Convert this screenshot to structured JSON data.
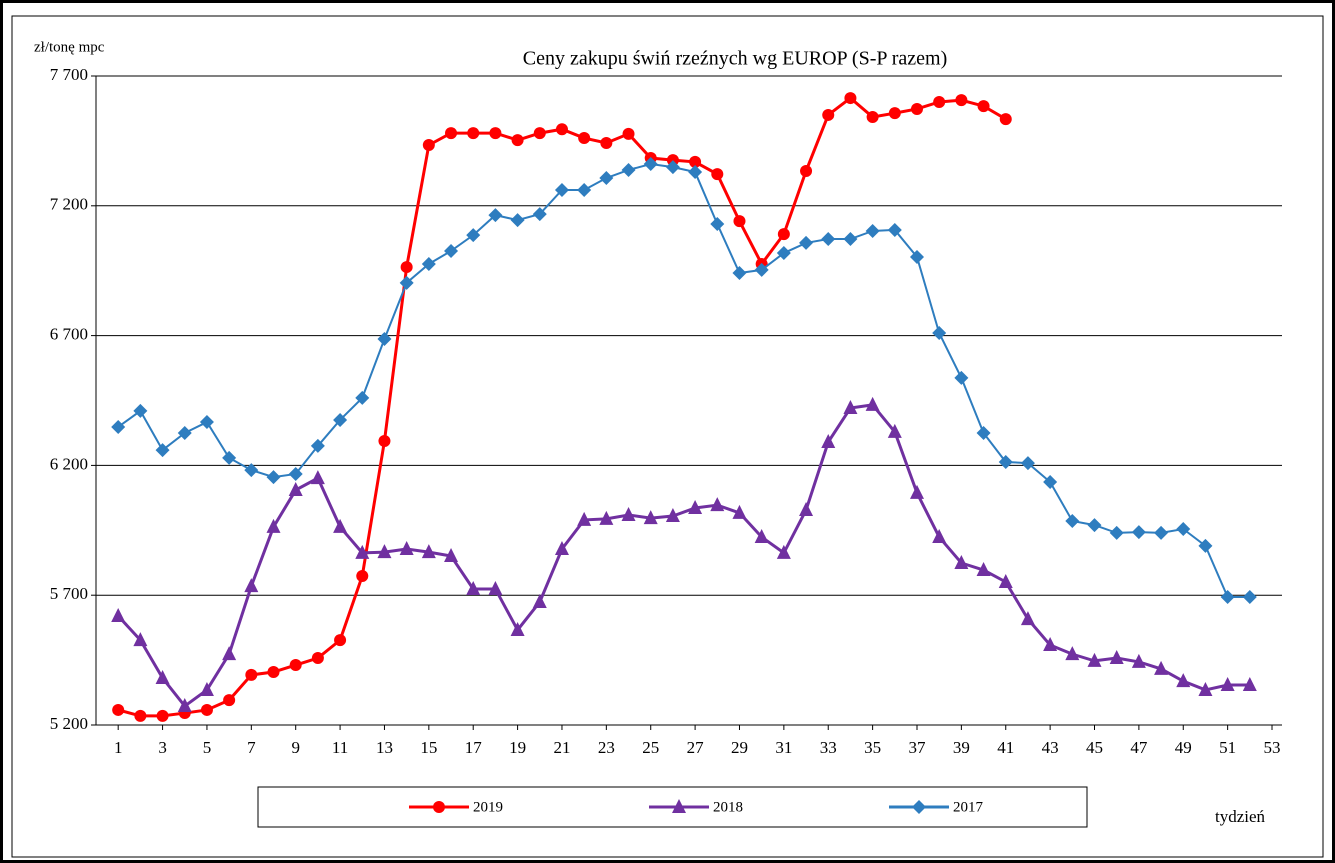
{
  "chart_data": {
    "type": "line",
    "title": "Ceny zakupu świń rzeźnych wg EUROP (S-P razem)",
    "y_label": "zł/tonę  mpc",
    "x_label": "tydzień",
    "x": [
      1,
      2,
      3,
      4,
      5,
      6,
      7,
      8,
      9,
      10,
      11,
      12,
      13,
      14,
      15,
      16,
      17,
      18,
      19,
      20,
      21,
      22,
      23,
      24,
      25,
      26,
      27,
      28,
      29,
      30,
      31,
      32,
      33,
      34,
      35,
      36,
      37,
      38,
      39,
      40,
      41,
      42,
      43,
      44,
      45,
      46,
      47,
      48,
      49,
      50,
      51,
      52
    ],
    "xlim": [
      0,
      53.45
    ],
    "xticks": [
      1,
      3,
      5,
      7,
      9,
      11,
      13,
      15,
      17,
      19,
      21,
      23,
      25,
      27,
      29,
      31,
      33,
      35,
      37,
      39,
      41,
      43,
      45,
      47,
      49,
      51,
      53
    ],
    "ylim": [
      5200,
      7700
    ],
    "yticks": [
      {
        "value": 5200,
        "label": "5 200"
      },
      {
        "value": 5700,
        "label": "5 700"
      },
      {
        "value": 6200,
        "label": "6 200"
      },
      {
        "value": 6700,
        "label": "6 700"
      },
      {
        "value": 7200,
        "label": "7 200"
      },
      {
        "value": 7700,
        "label": "7 700"
      }
    ],
    "grid": true,
    "series": [
      {
        "name": "2019",
        "color": "#ff0000",
        "marker": "circle",
        "values": [
          5258,
          5235,
          5235,
          5246,
          5258,
          5296,
          5393,
          5404,
          5431,
          5458,
          5527,
          5774,
          6294,
          6964,
          7434,
          7480,
          7480,
          7480,
          7453,
          7480,
          7495,
          7461,
          7442,
          7477,
          7384,
          7376,
          7369,
          7322,
          7141,
          6976,
          7091,
          7334,
          7550,
          7615,
          7542,
          7557,
          7573,
          7600,
          7607,
          7584,
          7534,
          null,
          null,
          null,
          null,
          null,
          null,
          null,
          null,
          null,
          null,
          null
        ]
      },
      {
        "name": "2018",
        "color": "#7030a0",
        "marker": "triangle",
        "values": [
          5620,
          5527,
          5381,
          5273,
          5335,
          5473,
          5735,
          5963,
          6105,
          6151,
          5963,
          5863,
          5866,
          5878,
          5866,
          5851,
          5724,
          5724,
          5566,
          5674,
          5878,
          5990,
          5994,
          6009,
          5997,
          6005,
          6036,
          6047,
          6017,
          5924,
          5863,
          6028,
          6290,
          6421,
          6433,
          6329,
          6094,
          5924,
          5824,
          5797,
          5751,
          5608,
          5508,
          5473,
          5447,
          5458,
          5443,
          5416,
          5369,
          5335,
          5354,
          5354
        ]
      },
      {
        "name": "2017",
        "color": "#2e7dbf",
        "marker": "diamond",
        "values": [
          6348,
          6410,
          6259,
          6325,
          6367,
          6229,
          6182,
          6155,
          6167,
          6275,
          6375,
          6460,
          6687,
          6903,
          6976,
          7026,
          7087,
          7164,
          7145,
          7168,
          7261,
          7261,
          7307,
          7338,
          7361,
          7349,
          7330,
          7130,
          6941,
          6953,
          7018,
          7057,
          7072,
          7072,
          7103,
          7107,
          7003,
          6710,
          6537,
          6325,
          6213,
          6209,
          6136,
          5986,
          5970,
          5940,
          5943,
          5940,
          5955,
          5890,
          5693,
          5693
        ]
      }
    ]
  }
}
